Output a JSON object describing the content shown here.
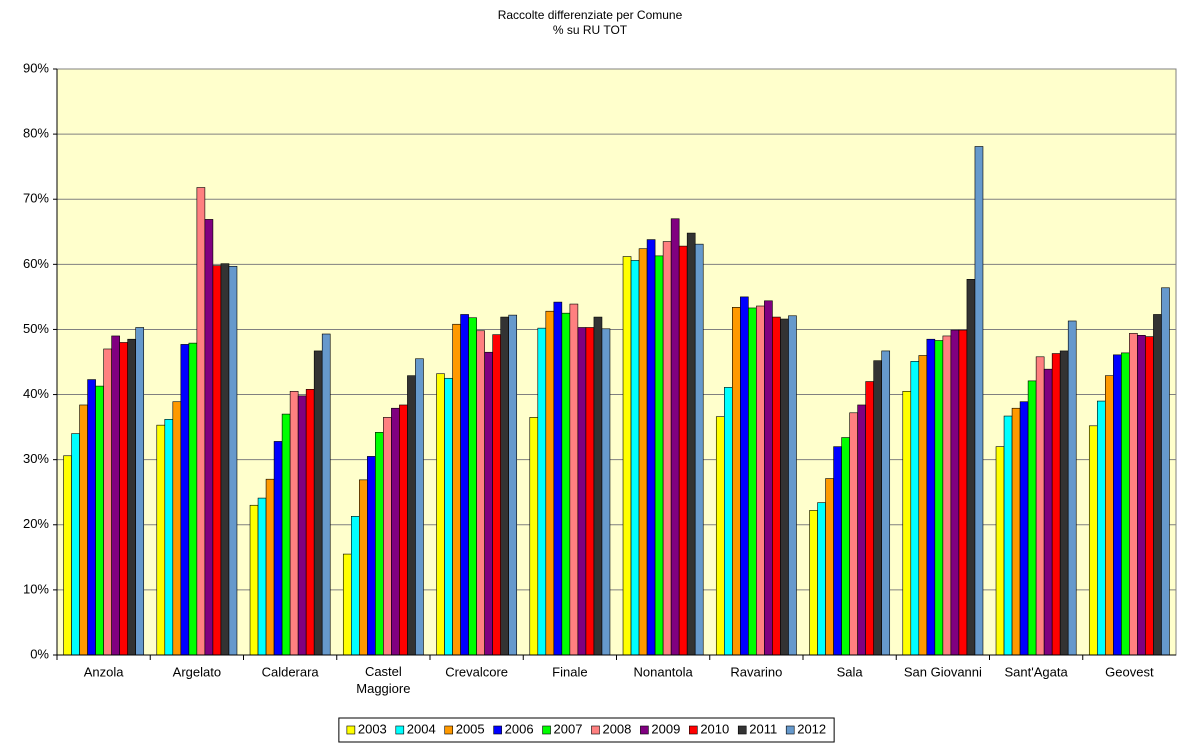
{
  "chart_data": {
    "type": "bar",
    "title": "Raccolte differenziate per Comune",
    "subtitle": "% su RU TOT",
    "categories": [
      "Anzola",
      "Argelato",
      "Calderara",
      "Castel Maggiore",
      "Crevalcore",
      "Finale",
      "Nonantola",
      "Ravarino",
      "Sala",
      "San Giovanni",
      "Sant'Agata",
      "Geovest"
    ],
    "series": [
      {
        "name": "2003",
        "color": "#ffff00",
        "values": [
          30.6,
          35.3,
          23.0,
          15.5,
          43.2,
          36.5,
          61.2,
          36.6,
          22.2,
          40.5,
          32.0,
          35.2
        ]
      },
      {
        "name": "2004",
        "color": "#00ffff",
        "values": [
          34.0,
          36.2,
          24.1,
          21.3,
          42.5,
          50.2,
          60.6,
          41.1,
          23.4,
          45.1,
          36.7,
          39.0
        ]
      },
      {
        "name": "2005",
        "color": "#ff9900",
        "values": [
          38.4,
          38.9,
          27.0,
          26.9,
          50.8,
          52.8,
          62.4,
          53.4,
          27.1,
          46.0,
          37.9,
          42.9
        ]
      },
      {
        "name": "2006",
        "color": "#0000ff",
        "values": [
          42.3,
          47.7,
          32.8,
          30.5,
          52.3,
          54.2,
          63.8,
          55.0,
          32.0,
          48.5,
          38.9,
          46.1
        ]
      },
      {
        "name": "2007",
        "color": "#00ff00",
        "values": [
          41.3,
          47.9,
          37.0,
          34.2,
          51.8,
          52.5,
          61.3,
          53.3,
          33.4,
          48.3,
          42.1,
          46.4
        ]
      },
      {
        "name": "2008",
        "color": "#ff8080",
        "values": [
          47.0,
          71.8,
          40.5,
          36.5,
          49.8,
          53.9,
          63.5,
          53.6,
          37.2,
          49.0,
          45.8,
          49.4
        ]
      },
      {
        "name": "2009",
        "color": "#800080",
        "values": [
          49.0,
          66.9,
          39.8,
          37.9,
          46.5,
          50.3,
          67.0,
          54.4,
          38.4,
          49.9,
          43.9,
          49.1
        ]
      },
      {
        "name": "2010",
        "color": "#ff0000",
        "values": [
          48.0,
          59.8,
          40.8,
          38.4,
          49.2,
          50.3,
          62.8,
          51.9,
          42.0,
          49.9,
          46.3,
          48.9
        ]
      },
      {
        "name": "2011",
        "color": "#333333",
        "values": [
          48.5,
          60.1,
          46.7,
          42.9,
          51.9,
          51.9,
          64.8,
          51.6,
          45.2,
          57.7,
          46.7,
          52.3
        ]
      },
      {
        "name": "2012",
        "color": "#6699cc",
        "values": [
          50.3,
          59.7,
          49.3,
          45.5,
          52.2,
          50.1,
          63.1,
          52.1,
          46.7,
          78.1,
          51.3,
          56.4
        ]
      }
    ],
    "ylim": [
      0,
      90
    ],
    "yticks": [
      {
        "value": 0,
        "label": "0%"
      },
      {
        "value": 10,
        "label": "10%"
      },
      {
        "value": 20,
        "label": "20%"
      },
      {
        "value": 30,
        "label": "30%"
      },
      {
        "value": 40,
        "label": "40%"
      },
      {
        "value": 50,
        "label": "50%"
      },
      {
        "value": 60,
        "label": "60%"
      },
      {
        "value": 70,
        "label": "70%"
      },
      {
        "value": 80,
        "label": "80%"
      },
      {
        "value": 90,
        "label": "90%"
      }
    ],
    "grid": true,
    "legend": "bottom",
    "background": "#ffffcc"
  }
}
